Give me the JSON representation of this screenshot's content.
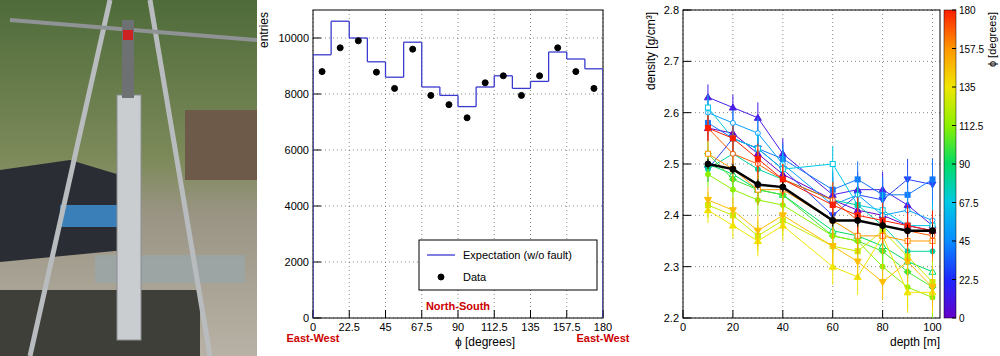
{
  "chart_data": [
    {
      "type": "histogram",
      "x_label": "ϕ [degrees]",
      "y_label": "entries",
      "bins": [
        0,
        11.25,
        22.5,
        33.75,
        45,
        56.25,
        67.5,
        78.75,
        90,
        101.25,
        112.5,
        123.75,
        135,
        146.25,
        157.5,
        168.75,
        180
      ],
      "xlim": [
        0,
        180
      ],
      "xticks": [
        0,
        22.5,
        45,
        67.5,
        90,
        112.5,
        135,
        157.5,
        180
      ],
      "ylim": [
        0,
        11000
      ],
      "yticks": [
        0,
        2000,
        4000,
        6000,
        8000,
        10000
      ],
      "grid": true,
      "legend": "bottom-right",
      "series": [
        {
          "name": "Expectation (w/o fault)",
          "type": "step",
          "color": "#3a3acf",
          "values": [
            9400,
            10600,
            10000,
            9150,
            8600,
            9850,
            8250,
            7950,
            7550,
            8250,
            8650,
            8200,
            8450,
            9500,
            9250,
            8900
          ]
        },
        {
          "name": "Data",
          "type": "scatter",
          "marker": "circle",
          "color": "#000000",
          "values": [
            8800,
            9650,
            9900,
            8780,
            8200,
            9600,
            7950,
            7620,
            7150,
            8400,
            8650,
            7950,
            8650,
            9650,
            8800,
            8200
          ]
        }
      ],
      "annotations": [
        {
          "text": "East-West",
          "x": 0,
          "color": "#cc0000"
        },
        {
          "text": "North-South",
          "x": 90,
          "color": "#cc0000"
        },
        {
          "text": "East-West",
          "x": 180,
          "color": "#cc0000"
        }
      ]
    },
    {
      "type": "line",
      "x_label": "depth [m]",
      "y_label": "density [g/cm³]",
      "x": [
        10,
        20,
        30,
        40,
        60,
        70,
        80,
        90,
        100
      ],
      "xlim": [
        0,
        103
      ],
      "xticks": [
        0,
        20,
        40,
        60,
        80,
        100
      ],
      "ylim": [
        2.2,
        2.8
      ],
      "yticks": [
        2.2,
        2.3,
        2.4,
        2.5,
        2.6,
        2.7,
        2.8
      ],
      "grid": true,
      "series": [
        {
          "color": "#6a00c8",
          "marker": "triangle",
          "values": [
            2.57,
            2.56,
            2.52,
            2.48,
            2.43,
            2.41,
            2.4,
            2.38,
            2.37
          ],
          "errors": [
            0.025,
            0.025,
            0.03,
            0.03,
            0.035,
            0.035,
            0.035,
            0.04,
            0.04
          ]
        },
        {
          "color": "#4b1ee6",
          "marker": "triangle",
          "values": [
            2.63,
            2.61,
            2.59,
            2.52,
            2.44,
            2.45,
            2.45,
            2.42,
            2.38
          ],
          "errors": [
            0.025,
            0.025,
            0.03,
            0.03,
            0.035,
            0.035,
            0.035,
            0.04,
            0.04
          ]
        },
        {
          "color": "#2846ff",
          "marker": "triangle-down",
          "values": [
            2.49,
            2.55,
            2.53,
            2.49,
            2.4,
            2.44,
            2.43,
            2.47,
            2.46
          ],
          "errors": [
            0.025,
            0.025,
            0.03,
            0.03,
            0.035,
            0.035,
            0.035,
            0.04,
            0.04
          ]
        },
        {
          "color": "#1478ff",
          "marker": "square",
          "values": [
            2.58,
            2.55,
            2.53,
            2.51,
            2.45,
            2.47,
            2.44,
            2.44,
            2.47
          ],
          "errors": [
            0.025,
            0.025,
            0.03,
            0.03,
            0.035,
            0.035,
            0.035,
            0.04,
            0.04
          ]
        },
        {
          "color": "#0aa0ff",
          "marker": "open-circle",
          "values": [
            2.6,
            2.58,
            2.56,
            2.5,
            2.42,
            2.44,
            2.4,
            2.41,
            2.39
          ],
          "errors": [
            0.025,
            0.025,
            0.03,
            0.03,
            0.035,
            0.035,
            0.035,
            0.04,
            0.04
          ]
        },
        {
          "color": "#00c8e6",
          "marker": "open-square",
          "values": [
            2.61,
            2.55,
            2.53,
            2.49,
            2.5,
            2.42,
            2.41,
            2.38,
            2.38
          ],
          "errors": [
            0.025,
            0.025,
            0.03,
            0.03,
            0.035,
            0.035,
            0.035,
            0.04,
            0.04
          ]
        },
        {
          "color": "#00d2a0",
          "marker": "circle",
          "values": [
            2.49,
            2.52,
            2.49,
            2.47,
            2.43,
            2.42,
            2.38,
            2.33,
            2.33
          ],
          "errors": [
            0.025,
            0.025,
            0.03,
            0.03,
            0.035,
            0.035,
            0.035,
            0.04,
            0.04
          ]
        },
        {
          "color": "#00dc64",
          "marker": "open-triangle",
          "values": [
            2.5,
            2.48,
            2.45,
            2.44,
            2.37,
            2.36,
            2.34,
            2.31,
            2.29
          ],
          "errors": [
            0.025,
            0.025,
            0.03,
            0.03,
            0.035,
            0.035,
            0.035,
            0.04,
            0.04
          ]
        },
        {
          "color": "#46e632",
          "marker": "diamond",
          "values": [
            2.52,
            2.47,
            2.45,
            2.44,
            2.36,
            2.35,
            2.33,
            2.29,
            2.26
          ],
          "errors": [
            0.025,
            0.025,
            0.03,
            0.03,
            0.035,
            0.035,
            0.035,
            0.04,
            0.04
          ]
        },
        {
          "color": "#8cf000",
          "marker": "circle",
          "values": [
            2.48,
            2.45,
            2.43,
            2.42,
            2.36,
            2.35,
            2.3,
            2.26,
            2.24
          ],
          "errors": [
            0.025,
            0.025,
            0.03,
            0.03,
            0.035,
            0.035,
            0.035,
            0.04,
            0.04
          ]
        },
        {
          "color": "#c8eb00",
          "marker": "square",
          "values": [
            2.42,
            2.4,
            2.36,
            2.39,
            2.34,
            2.33,
            2.37,
            2.32,
            2.27
          ],
          "errors": [
            0.025,
            0.025,
            0.03,
            0.03,
            0.035,
            0.035,
            0.035,
            0.04,
            0.04
          ]
        },
        {
          "color": "#f0e600",
          "marker": "triangle",
          "values": [
            2.41,
            2.38,
            2.35,
            2.38,
            2.3,
            2.28,
            2.36,
            2.25,
            2.25
          ],
          "errors": [
            0.025,
            0.025,
            0.03,
            0.03,
            0.035,
            0.035,
            0.035,
            0.04,
            0.04
          ]
        },
        {
          "color": "#ffbe00",
          "marker": "triangle-down",
          "values": [
            2.43,
            2.41,
            2.37,
            2.4,
            2.34,
            2.31,
            2.27,
            2.31,
            2.26
          ],
          "errors": [
            0.025,
            0.025,
            0.03,
            0.03,
            0.035,
            0.035,
            0.035,
            0.04,
            0.04
          ]
        },
        {
          "color": "#ff9600",
          "marker": "open-square",
          "values": [
            2.52,
            2.49,
            2.45,
            2.45,
            2.39,
            2.36,
            2.36,
            2.35,
            2.35
          ],
          "errors": [
            0.025,
            0.025,
            0.03,
            0.03,
            0.035,
            0.035,
            0.035,
            0.04,
            0.04
          ]
        },
        {
          "color": "#ff5a00",
          "marker": "open-circle",
          "values": [
            2.57,
            2.52,
            2.5,
            2.47,
            2.43,
            2.39,
            2.38,
            2.37,
            2.36
          ],
          "errors": [
            0.025,
            0.025,
            0.03,
            0.03,
            0.035,
            0.035,
            0.035,
            0.04,
            0.04
          ]
        },
        {
          "color": "#ff1e00",
          "marker": "square",
          "values": [
            2.57,
            2.55,
            2.51,
            2.47,
            2.42,
            2.4,
            2.39,
            2.38,
            2.37
          ],
          "errors": [
            0.025,
            0.025,
            0.03,
            0.03,
            0.035,
            0.035,
            0.035,
            0.04,
            0.04
          ]
        },
        {
          "color": "#000000",
          "marker": "circle",
          "line_style": "thick",
          "values": [
            2.5,
            2.49,
            2.46,
            2.455,
            2.39,
            2.39,
            2.38,
            2.37,
            2.37
          ],
          "errors": [
            0.01,
            0.01,
            0.01,
            0.01,
            0.012,
            0.012,
            0.012,
            0.012,
            0.012
          ]
        }
      ],
      "colorbar": {
        "label": "ϕ [degrees]",
        "range": [
          0,
          180
        ],
        "ticks": [
          0,
          22.5,
          45,
          67.5,
          90,
          112.5,
          135,
          157.5,
          180
        ],
        "colors": [
          "#6400c8",
          "#1e28ff",
          "#0a8cff",
          "#00c8e6",
          "#00dc64",
          "#8cf000",
          "#f0e600",
          "#ff9600",
          "#ff1e00"
        ]
      }
    }
  ]
}
